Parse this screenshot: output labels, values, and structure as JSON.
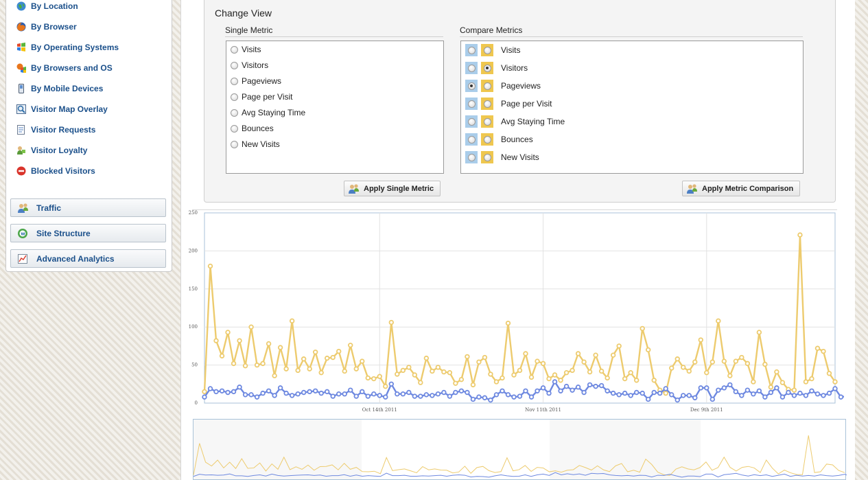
{
  "sidebar": {
    "items": [
      {
        "label": "By Location",
        "icon": "globe-icon"
      },
      {
        "label": "By Browser",
        "icon": "firefox-icon"
      },
      {
        "label": "By Operating Systems",
        "icon": "windows-icon"
      },
      {
        "label": "By Browsers and OS",
        "icon": "browser-os-icon"
      },
      {
        "label": "By Mobile Devices",
        "icon": "mobile-phone-icon"
      },
      {
        "label": "Visitor Map Overlay",
        "icon": "map-overlay-icon"
      },
      {
        "label": "Visitor Requests",
        "icon": "requests-icon"
      },
      {
        "label": "Visitor Loyalty",
        "icon": "loyalty-icon"
      },
      {
        "label": "Blocked Visitors",
        "icon": "blocked-icon"
      }
    ],
    "sections": [
      {
        "label": "Traffic",
        "icon": "users-icon"
      },
      {
        "label": "Site Structure",
        "icon": "site-structure-icon"
      },
      {
        "label": "Advanced Analytics",
        "icon": "analytics-icon"
      }
    ]
  },
  "change_view": {
    "title": "Change View",
    "single_metric": {
      "label": "Single Metric",
      "options": [
        "Visits",
        "Visitors",
        "Pageviews",
        "Page per Visit",
        "Avg Staying Time",
        "Bounces",
        "New Visits"
      ],
      "selected": null,
      "button": "Apply Single Metric"
    },
    "compare_metrics": {
      "label": "Compare Metrics",
      "options": [
        "Visits",
        "Visitors",
        "Pageviews",
        "Page per Visit",
        "Avg Staying Time",
        "Bounces",
        "New Visits"
      ],
      "selected_blue": "Pageviews",
      "selected_yellow": "Visitors",
      "button": "Apply Metric Comparison"
    }
  },
  "colors": {
    "series_yellow": "#edcb6e",
    "series_blue": "#6d88e0",
    "link": "#1a4f8a"
  },
  "chart_data": {
    "type": "line",
    "ylim": [
      0,
      250
    ],
    "yticks": [
      0,
      50,
      100,
      150,
      200,
      250
    ],
    "xticks": [
      {
        "label": "Oct 14th 2011",
        "index": 30
      },
      {
        "label": "Nov 11th 2011",
        "index": 58
      },
      {
        "label": "Dec 9th 2011",
        "index": 86
      }
    ],
    "grid": true,
    "series": [
      {
        "color": "#edcb6e",
        "values": [
          15,
          180,
          82,
          62,
          93,
          52,
          82,
          49,
          100,
          50,
          52,
          78,
          36,
          73,
          45,
          108,
          43,
          58,
          45,
          67,
          40,
          59,
          60,
          68,
          42,
          76,
          45,
          55,
          33,
          32,
          35,
          22,
          106,
          38,
          43,
          47,
          37,
          27,
          59,
          42,
          47,
          41,
          40,
          26,
          31,
          61,
          24,
          54,
          60,
          38,
          28,
          33,
          105,
          37,
          43,
          65,
          34,
          55,
          52,
          32,
          37,
          30,
          40,
          43,
          65,
          54,
          41,
          63,
          42,
          33,
          63,
          75,
          32,
          40,
          30,
          98,
          70,
          30,
          17,
          13,
          46,
          58,
          47,
          42,
          54,
          83,
          40,
          54,
          108,
          55,
          36,
          55,
          60,
          52,
          28,
          93,
          51,
          21,
          41,
          27,
          18,
          17,
          221,
          28,
          32,
          72,
          68,
          39,
          28
        ]
      },
      {
        "color": "#6d88e0",
        "values": [
          8,
          19,
          15,
          16,
          14,
          15,
          21,
          11,
          11,
          8,
          13,
          16,
          10,
          20,
          13,
          10,
          12,
          14,
          15,
          16,
          13,
          15,
          9,
          12,
          12,
          17,
          9,
          15,
          9,
          12,
          10,
          8,
          25,
          12,
          12,
          14,
          9,
          9,
          11,
          10,
          12,
          14,
          9,
          14,
          16,
          14,
          5,
          8,
          7,
          4,
          11,
          16,
          11,
          8,
          9,
          16,
          8,
          16,
          20,
          13,
          28,
          16,
          22,
          17,
          21,
          14,
          24,
          22,
          23,
          16,
          13,
          11,
          13,
          10,
          14,
          13,
          5,
          14,
          13,
          19,
          11,
          4,
          10,
          10,
          7,
          20,
          20,
          5,
          17,
          20,
          24,
          15,
          10,
          17,
          12,
          16,
          8,
          14,
          20,
          8,
          14,
          10,
          13,
          10,
          16,
          12,
          10,
          13,
          19,
          8,
          9,
          17,
          15,
          9,
          12
        ]
      }
    ]
  }
}
